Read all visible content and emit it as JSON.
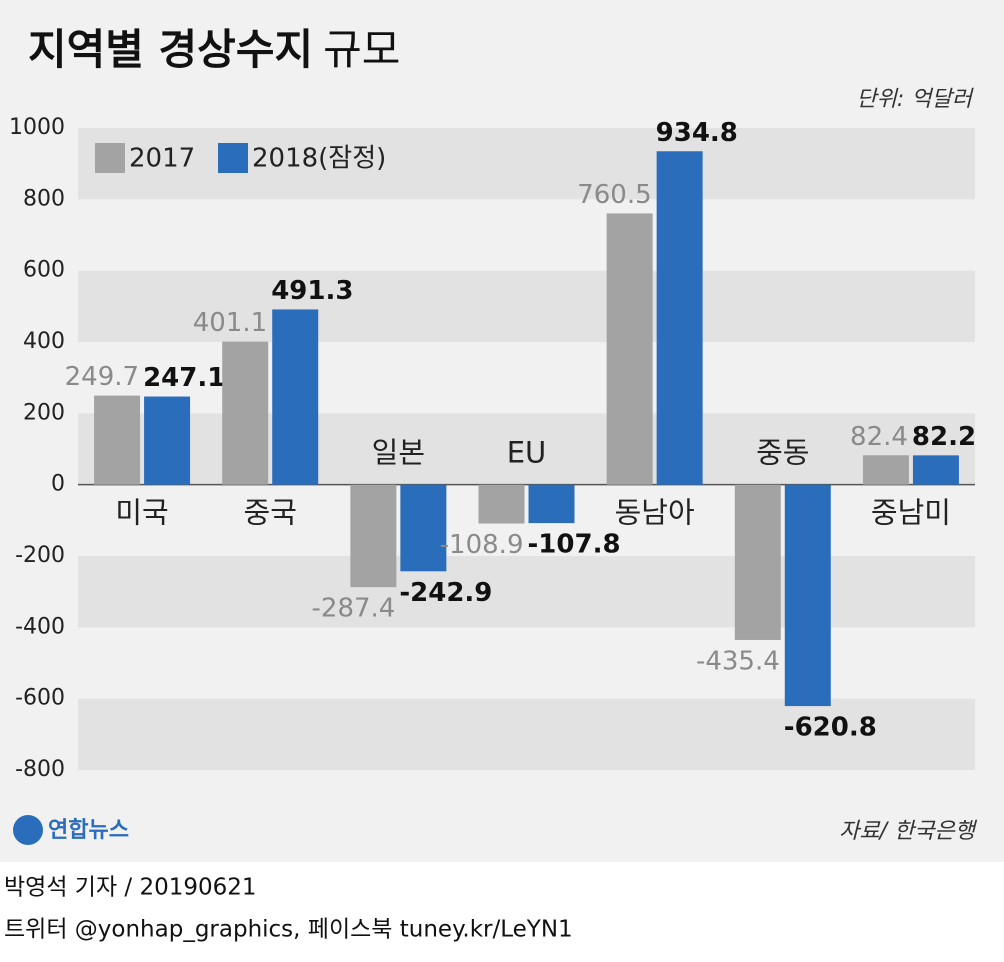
{
  "chart_data": {
    "type": "bar",
    "title": "지역별 경상수지",
    "title_suffix": "규모",
    "unit": "단위: 억달러",
    "categories": [
      "미국",
      "중국",
      "일본",
      "EU",
      "동남아",
      "중동",
      "중남미"
    ],
    "series": [
      {
        "name": "2017",
        "color": "#a3a3a3",
        "values": [
          249.7,
          401.1,
          -287.4,
          -108.9,
          760.5,
          -435.4,
          82.4
        ]
      },
      {
        "name": "2018(잠정)",
        "color": "#2a6ebb",
        "values": [
          247.1,
          491.3,
          -242.9,
          -107.8,
          934.8,
          -620.8,
          82.2
        ]
      }
    ],
    "ylim": [
      -800,
      1000
    ],
    "yticks": [
      -800,
      -600,
      -400,
      -200,
      0,
      200,
      400,
      600,
      800,
      1000
    ],
    "grid": true,
    "legend": "top-left",
    "source": "자료/ 한국은행",
    "logo": "연합뉴스",
    "byline": "박영석 기자 /  20190621",
    "contact": "트위터 @yonhap_graphics, 페이스북 tuney.kr/LeYN1"
  }
}
